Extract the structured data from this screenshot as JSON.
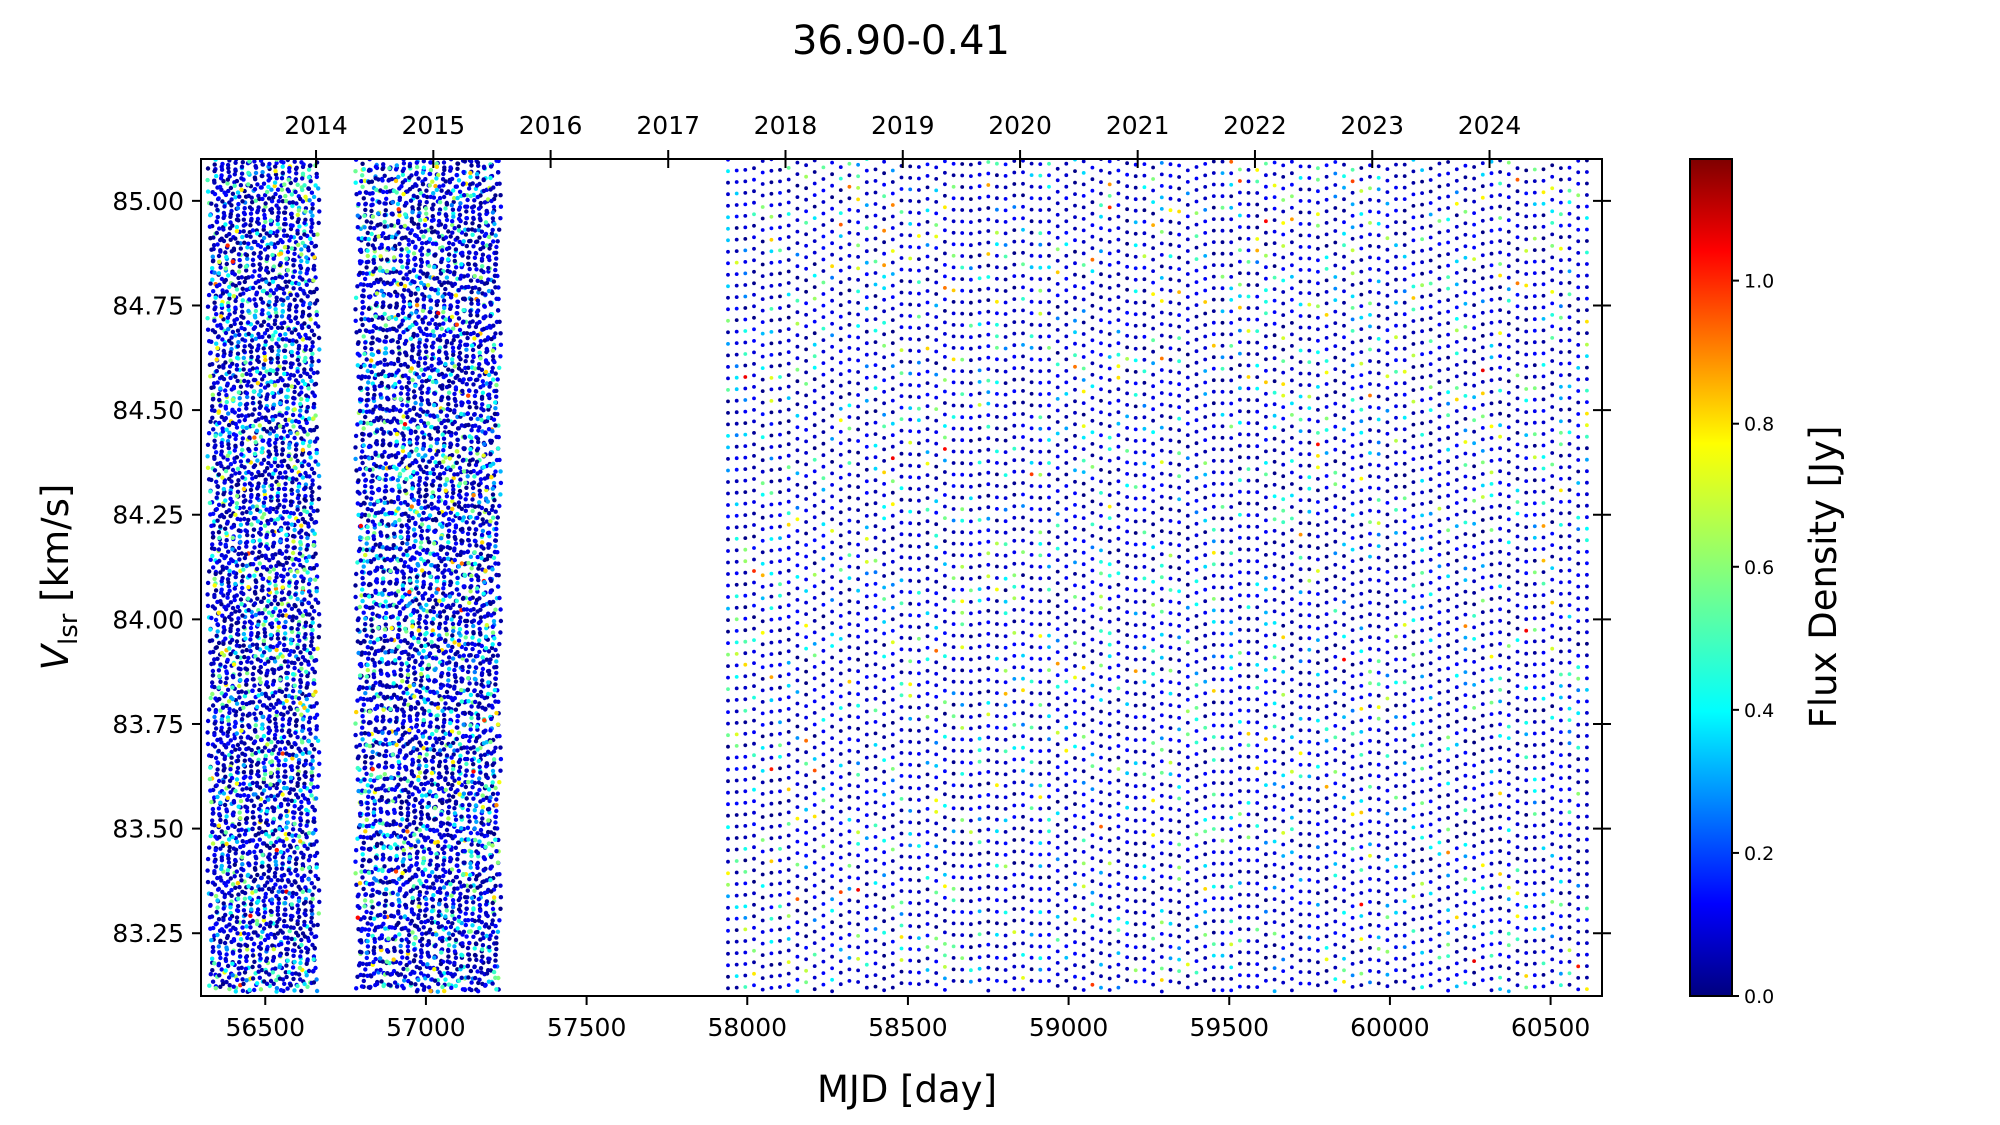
{
  "chart_data": {
    "type": "scatter",
    "title": "36.90-0.41",
    "xlabel": "MJD [day]",
    "ylabel_main": "V",
    "ylabel_sub": "lsr",
    "ylabel_unit": " [km/s]",
    "xlim": [
      56300,
      60660
    ],
    "ylim": [
      83.1,
      85.1
    ],
    "x_ticks": [
      56500,
      57000,
      57500,
      58000,
      58500,
      59000,
      59500,
      60000,
      60500
    ],
    "x_tick_labels": [
      "56500",
      "57000",
      "57500",
      "58000",
      "58500",
      "59000",
      "59500",
      "60000",
      "60500"
    ],
    "y_ticks": [
      83.25,
      83.5,
      83.75,
      84.0,
      84.25,
      84.5,
      84.75,
      85.0
    ],
    "y_tick_labels": [
      "83.25",
      "83.50",
      "83.75",
      "84.00",
      "84.25",
      "84.50",
      "84.75",
      "85.00"
    ],
    "year_axis": {
      "labels": [
        "2014",
        "2015",
        "2016",
        "2017",
        "2018",
        "2019",
        "2020",
        "2021",
        "2022",
        "2023",
        "2024"
      ],
      "mjd": [
        56658,
        57023,
        57388,
        57754,
        58119,
        58484,
        58849,
        59215,
        59580,
        59945,
        60310
      ]
    },
    "colorbar": {
      "label": "Flux Density [Jy]",
      "range": [
        0.0,
        1.17
      ],
      "ticks": [
        0.0,
        0.2,
        0.4,
        0.6,
        0.8,
        1.0
      ],
      "tick_labels": [
        "0.0",
        "0.2",
        "0.4",
        "0.6",
        "0.8",
        "1.0"
      ],
      "colormap": "jet"
    },
    "observation_segments": [
      {
        "start": 56330,
        "end": 56660,
        "cadence_days": 7,
        "density": "dense"
      },
      {
        "start": 56790,
        "end": 57230,
        "cadence_days": 7,
        "density": "dense"
      },
      {
        "start": 57940,
        "end": 60620,
        "cadence_days": 27,
        "density": "sparse"
      }
    ],
    "channel_spacing_kms": 0.0275,
    "flux_pattern": "mostly 0.0-0.15 Jy, scattered values 0.3-0.6 Jy, rare peaks near 0.8-1.0 Jy",
    "grid": false
  }
}
